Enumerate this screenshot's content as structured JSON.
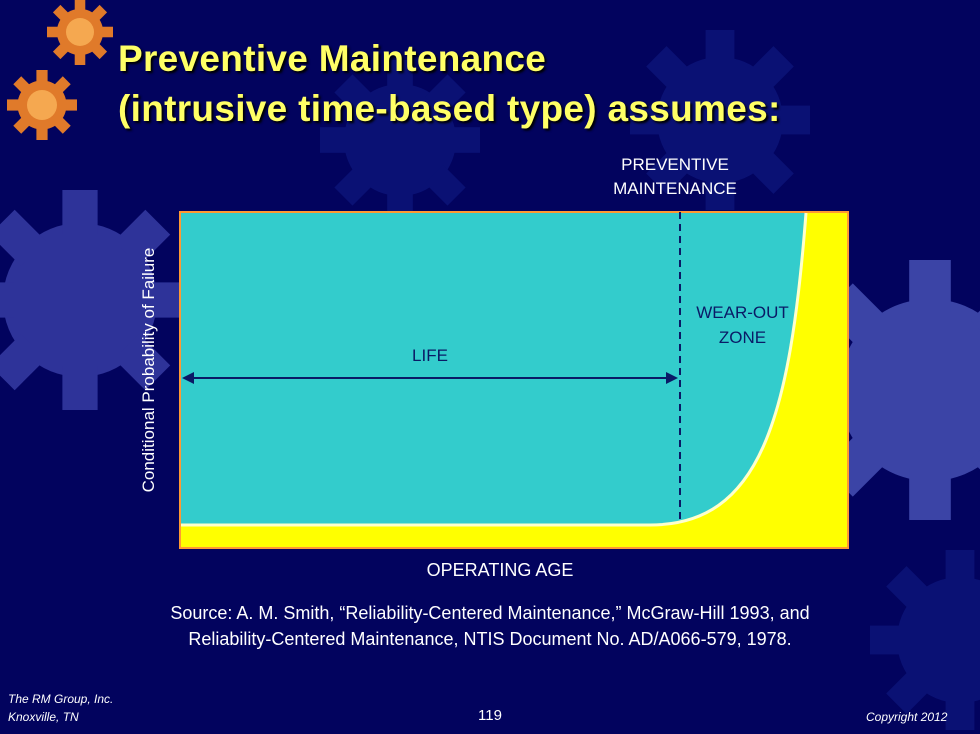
{
  "slide": {
    "title_line1": "Preventive Maintenance",
    "title_line2": "(intrusive time-based type) assumes:",
    "diagram": {
      "pm_label_line1": "PREVENTIVE",
      "pm_label_line2": "MAINTENANCE",
      "life_label": "LIFE",
      "wearout_line1": "WEAR-OUT",
      "wearout_line2": "ZONE",
      "y_axis_label": "Conditional Probability  of Failure",
      "x_axis_label": "OPERATING  AGE",
      "colors": {
        "region": "#33cccc",
        "curve_fill": "#ffff00",
        "frame": "#ff9933"
      }
    },
    "source_line1": "Source: A. M. Smith, “Reliability-Centered Maintenance,” McGraw-Hill 1993, and",
    "source_line2": "Reliability-Centered Maintenance, NTIS Document No. AD/A066-579, 1978.",
    "footer": {
      "company": "The RM Group, Inc.",
      "location": "Knoxville, TN",
      "page": "119",
      "copyright": "Copyright 2012"
    }
  }
}
